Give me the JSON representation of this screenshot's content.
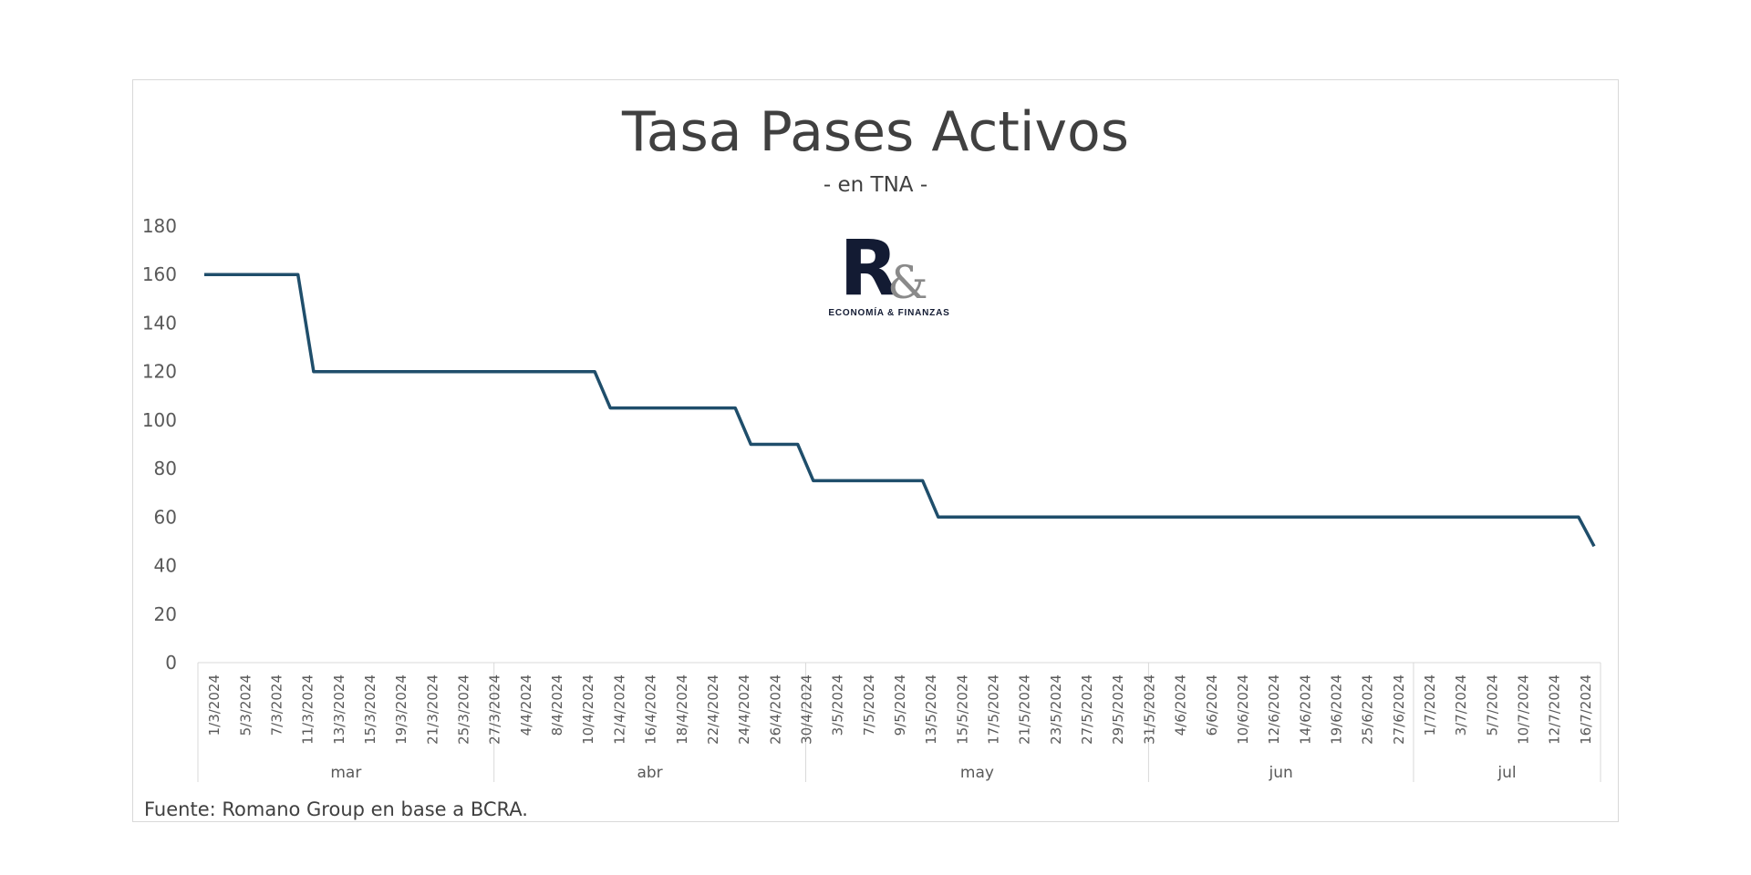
{
  "chart_data": {
    "type": "line",
    "title": "Tasa Pases Activos",
    "subtitle": "- en TNA -",
    "source": "Fuente: Romano Group en base a BCRA.",
    "logo": {
      "mark": "R",
      "amp": "&",
      "caption": "ECONOMÍA & FINANZAS"
    },
    "ylim": [
      0,
      180
    ],
    "yticks": [
      0,
      20,
      40,
      60,
      80,
      100,
      120,
      140,
      160,
      180
    ],
    "grid": false,
    "line_color": "#1f4e6b",
    "x_tick_labels": [
      "1/3/2024",
      "5/3/2024",
      "7/3/2024",
      "11/3/2024",
      "13/3/2024",
      "15/3/2024",
      "19/3/2024",
      "21/3/2024",
      "25/3/2024",
      "27/3/2024",
      "4/4/2024",
      "8/4/2024",
      "10/4/2024",
      "12/4/2024",
      "16/4/2024",
      "18/4/2024",
      "22/4/2024",
      "24/4/2024",
      "26/4/2024",
      "30/4/2024",
      "3/5/2024",
      "7/5/2024",
      "9/5/2024",
      "13/5/2024",
      "15/5/2024",
      "17/5/2024",
      "21/5/2024",
      "23/5/2024",
      "27/5/2024",
      "29/5/2024",
      "31/5/2024",
      "4/6/2024",
      "6/6/2024",
      "10/6/2024",
      "12/6/2024",
      "14/6/2024",
      "19/6/2024",
      "25/6/2024",
      "27/6/2024",
      "1/7/2024",
      "3/7/2024",
      "5/7/2024",
      "10/7/2024",
      "12/7/2024",
      "16/7/2024"
    ],
    "months": [
      {
        "label": "mar",
        "days": 19
      },
      {
        "label": "abr",
        "days": 20
      },
      {
        "label": "may",
        "days": 22
      },
      {
        "label": "jun",
        "days": 17
      },
      {
        "label": "jul",
        "days": 12
      }
    ],
    "series": [
      {
        "values": [
          160,
          160,
          160,
          160,
          160,
          160,
          160,
          120,
          120,
          120,
          120,
          120,
          120,
          120,
          120,
          120,
          120,
          120,
          120,
          120,
          120,
          120,
          120,
          120,
          120,
          120,
          105,
          105,
          105,
          105,
          105,
          105,
          105,
          105,
          105,
          90,
          90,
          90,
          90,
          75,
          75,
          75,
          75,
          75,
          75,
          75,
          75,
          60,
          60,
          60,
          60,
          60,
          60,
          60,
          60,
          60,
          60,
          60,
          60,
          60,
          60,
          60,
          60,
          60,
          60,
          60,
          60,
          60,
          60,
          60,
          60,
          60,
          60,
          60,
          60,
          60,
          60,
          60,
          60,
          60,
          60,
          60,
          60,
          60,
          60,
          60,
          60,
          60,
          60,
          48
        ]
      }
    ]
  }
}
